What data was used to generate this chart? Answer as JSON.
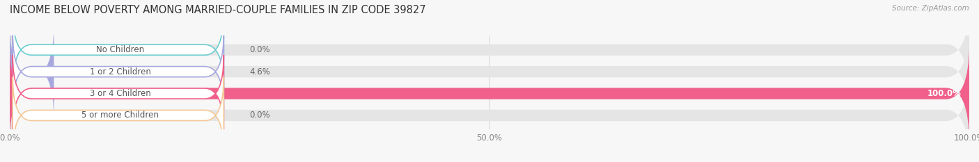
{
  "title": "INCOME BELOW POVERTY AMONG MARRIED-COUPLE FAMILIES IN ZIP CODE 39827",
  "source": "Source: ZipAtlas.com",
  "categories": [
    "No Children",
    "1 or 2 Children",
    "3 or 4 Children",
    "5 or more Children"
  ],
  "values": [
    0.0,
    4.6,
    100.0,
    0.0
  ],
  "bar_colors": [
    "#6dcdd0",
    "#a8a8df",
    "#f0608a",
    "#f5c897"
  ],
  "bg_color": "#f7f7f7",
  "bar_bg_color": "#e5e5e5",
  "xticks": [
    0.0,
    50.0,
    100.0
  ],
  "xtick_labels": [
    "0.0%",
    "50.0%",
    "100.0%"
  ],
  "title_fontsize": 10.5,
  "label_fontsize": 8.5,
  "value_fontsize": 8.5,
  "bar_height": 0.52,
  "figsize": [
    14.06,
    2.33
  ],
  "dpi": 100
}
